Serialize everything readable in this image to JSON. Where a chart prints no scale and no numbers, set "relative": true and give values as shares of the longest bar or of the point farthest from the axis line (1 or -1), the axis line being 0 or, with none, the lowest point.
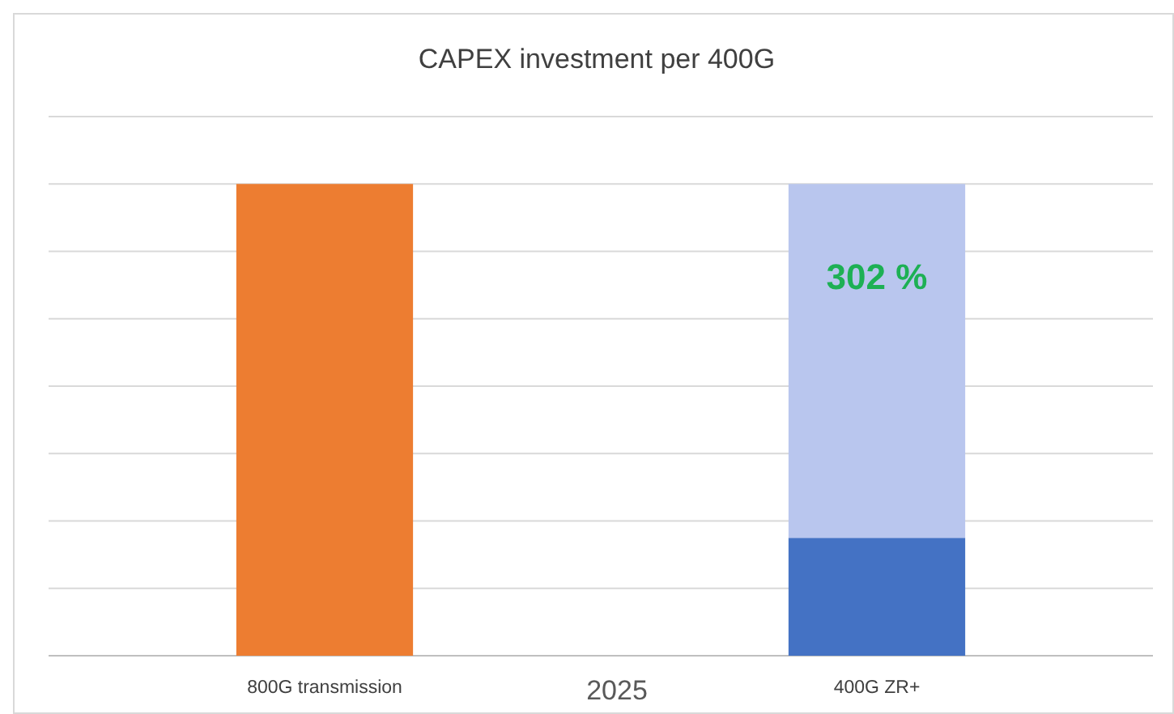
{
  "chart_data": {
    "type": "bar",
    "title": "CAPEX investment per 400G",
    "xlabel": "2025",
    "categories": [
      "800G transmission",
      "400G ZR+"
    ],
    "relative": true,
    "stacked": true,
    "grid": true,
    "series": [
      {
        "colors": [
          "#ed7d31",
          "#4472c4"
        ],
        "values": [
          1,
          0.25
        ]
      },
      {
        "color": "#b9c6ee",
        "values": [
          null,
          0.75
        ]
      }
    ],
    "annotations": [
      "302 %"
    ]
  }
}
